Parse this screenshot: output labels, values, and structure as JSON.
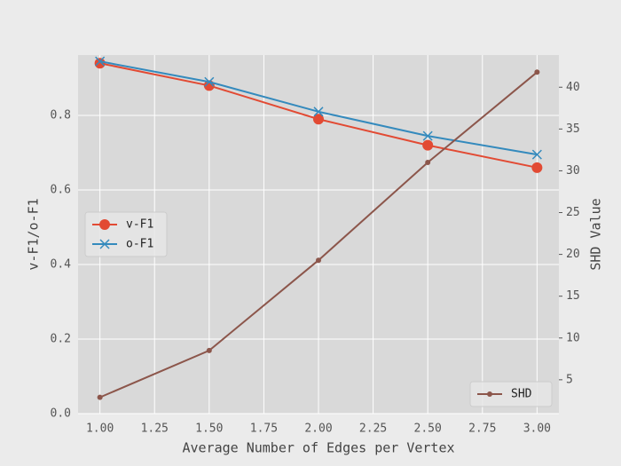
{
  "chart_data": {
    "type": "line",
    "xlabel": "Average Number of Edges per Vertex",
    "ylabel": "v-F1/o-F1",
    "y2label": "SHD Value",
    "x": [
      1.0,
      1.5,
      2.0,
      2.5,
      3.0
    ],
    "xlim": [
      0.9,
      3.1
    ],
    "xticks": [
      {
        "value": 1.0,
        "label": "1.00"
      },
      {
        "value": 1.25,
        "label": "1.25"
      },
      {
        "value": 1.5,
        "label": "1.50"
      },
      {
        "value": 1.75,
        "label": "1.75"
      },
      {
        "value": 2.0,
        "label": "2.00"
      },
      {
        "value": 2.25,
        "label": "2.25"
      },
      {
        "value": 2.5,
        "label": "2.50"
      },
      {
        "value": 2.75,
        "label": "2.75"
      },
      {
        "value": 3.0,
        "label": "3.00"
      }
    ],
    "ylim": [
      0,
      0.962
    ],
    "yticks": [
      {
        "value": 0,
        "label": "0.0"
      },
      0.2,
      0.4,
      0.6,
      0.8
    ],
    "y2lim": [
      0.95,
      43.85
    ],
    "y2ticks": [
      5,
      10,
      15,
      20,
      25,
      30,
      35,
      40
    ],
    "grid": true,
    "legend_loc": "center left",
    "y2_legend_loc": "lower right",
    "series": [
      {
        "name": "v-F1",
        "color": "#e24a33",
        "marker": "circle",
        "values": [
          0.94,
          0.88,
          0.79,
          0.72,
          0.66
        ]
      },
      {
        "name": "o-F1",
        "color": "#348abd",
        "marker": "x",
        "values": [
          0.945,
          0.89,
          0.81,
          0.745,
          0.695
        ]
      },
      {
        "name": "SHD",
        "color": "#8c564b",
        "marker": "dot",
        "axis": "y2",
        "values": [
          2.9,
          8.5,
          19.3,
          31.0,
          41.8
        ]
      }
    ]
  }
}
